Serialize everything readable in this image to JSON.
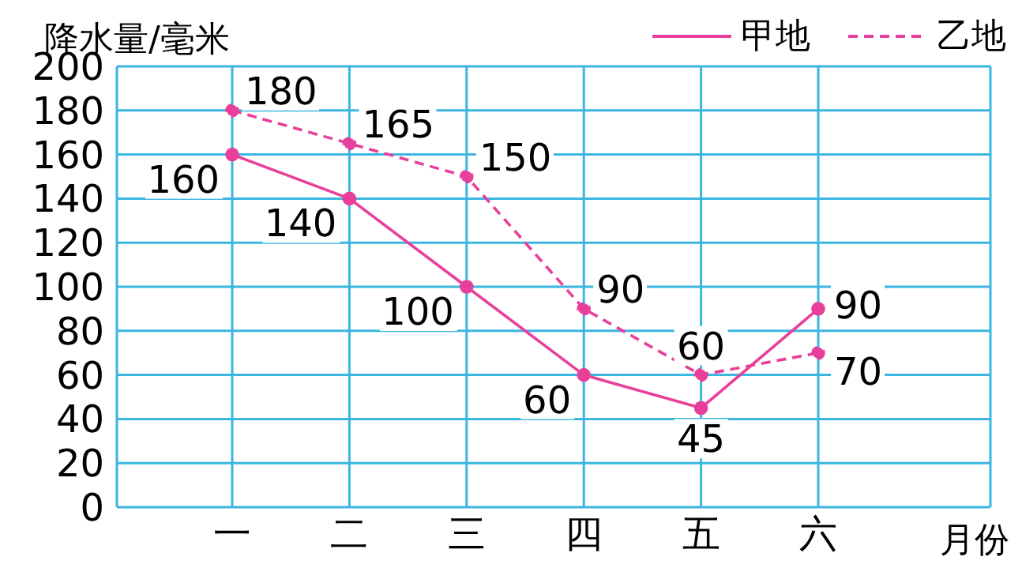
{
  "chart_data": {
    "type": "line",
    "ylabel": "降水量/毫米",
    "xlabel": "月份",
    "categories": [
      "一",
      "二",
      "三",
      "四",
      "五",
      "六"
    ],
    "series": [
      {
        "name": "甲地",
        "color": "#e8409a",
        "values": [
          160,
          140,
          100,
          60,
          45,
          90
        ],
        "line_style": "solid"
      },
      {
        "name": "乙地",
        "color": "#e8409a",
        "values": [
          180,
          165,
          150,
          90,
          60,
          70
        ],
        "line_style": "dashed"
      }
    ],
    "ylim": [
      0,
      200
    ],
    "yticks": [
      0,
      20,
      40,
      60,
      80,
      100,
      120,
      140,
      160,
      180,
      200
    ],
    "grid": true,
    "legend": "top right",
    "marker": "circle",
    "data_labels": true
  }
}
